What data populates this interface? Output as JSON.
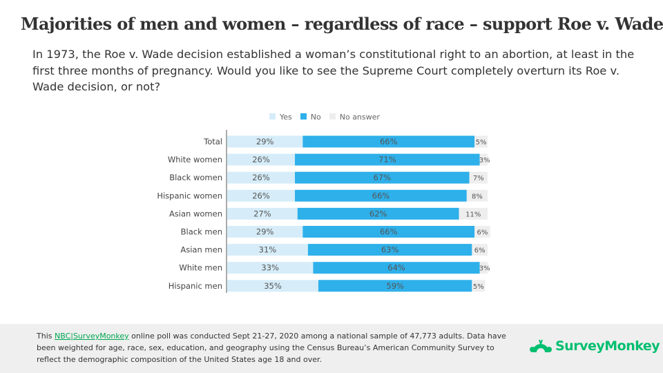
{
  "title": "Majorities of men and women – regardless of race – support Roe v. Wade",
  "question": "In 1973, the Roe v. Wade decision established a woman’s constitutional right to an abortion, at least in the first three months of pregnancy. Would you like to see the Supreme Court completely overturn its Roe v. Wade decision, or not?",
  "chart_data": {
    "type": "bar",
    "stacked": true,
    "orientation": "horizontal",
    "legend_position": "top",
    "categories": [
      "Total",
      "White women",
      "Black women",
      "Hispanic women",
      "Asian women",
      "Black men",
      "Asian men",
      "White men",
      "Hispanic men"
    ],
    "series": [
      {
        "name": "Yes",
        "color": "#d6edf9",
        "values": [
          29,
          26,
          26,
          26,
          27,
          29,
          31,
          33,
          35
        ]
      },
      {
        "name": "No",
        "color": "#2eb0ea",
        "values": [
          66,
          71,
          67,
          66,
          62,
          66,
          63,
          64,
          59
        ]
      },
      {
        "name": "No answer",
        "color": "#eeeeee",
        "values": [
          5,
          3,
          7,
          8,
          11,
          6,
          6,
          3,
          5
        ]
      }
    ],
    "xlim": [
      0,
      100
    ]
  },
  "footer": {
    "pre": "This ",
    "link": "NBC|SurveyMonkey",
    "post": " online poll was conducted Sept 21-27, 2020 among a national sample of 47,773 adults. Data have been weighted for age, race, sex, education, and geography using the Census Bureau’s American Community Survey to reflect the demographic composition of the United States age 18 and over."
  },
  "logo": {
    "text": "SurveyMonkey",
    "color": "#00bf6f"
  }
}
